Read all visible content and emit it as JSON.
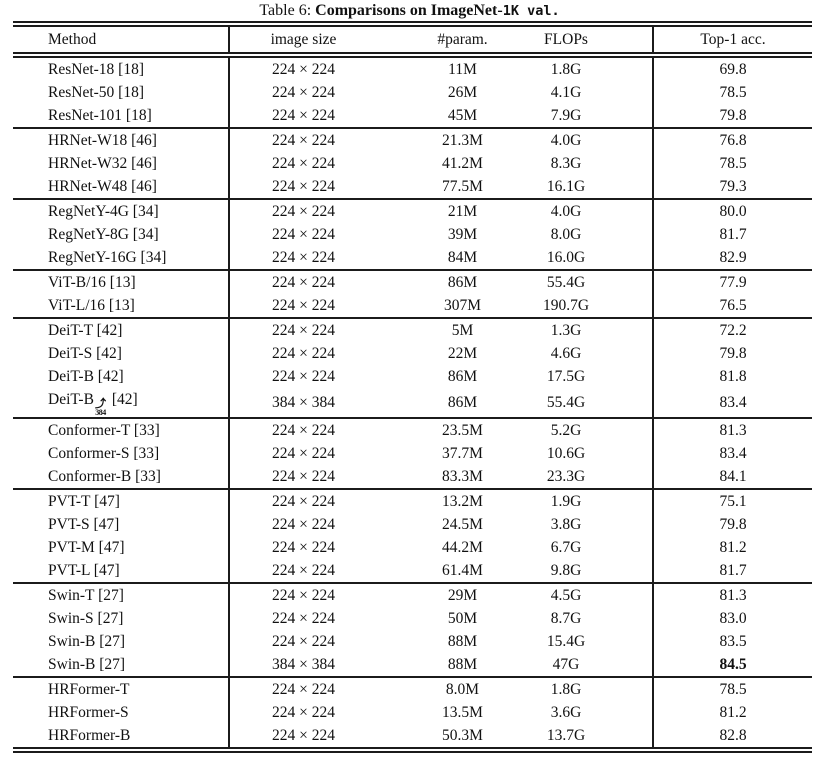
{
  "caption": {
    "label": "Table 6: ",
    "bold_text": "Comparisons on ImageNet-",
    "mono_text": "1K val."
  },
  "table": {
    "columns": [
      "Method",
      "image size",
      "#param.",
      "FLOPs",
      "Top-1 acc."
    ],
    "groups": [
      {
        "name": "resnet",
        "rows": [
          {
            "method": "ResNet-18 [18]",
            "values": [
              "224 × 224",
              "11M",
              "1.8G",
              "69.8"
            ]
          },
          {
            "method": "ResNet-50 [18]",
            "values": [
              "224 × 224",
              "26M",
              "4.1G",
              "78.5"
            ]
          },
          {
            "method": "ResNet-101 [18]",
            "values": [
              "224 × 224",
              "45M",
              "7.9G",
              "79.8"
            ]
          }
        ]
      },
      {
        "name": "hrnet",
        "rows": [
          {
            "method": "HRNet-W18 [46]",
            "values": [
              "224 × 224",
              "21.3M",
              "4.0G",
              "76.8"
            ]
          },
          {
            "method": "HRNet-W32 [46]",
            "values": [
              "224 × 224",
              "41.2M",
              "8.3G",
              "78.5"
            ]
          },
          {
            "method": "HRNet-W48 [46]",
            "values": [
              "224 × 224",
              "77.5M",
              "16.1G",
              "79.3"
            ]
          }
        ]
      },
      {
        "name": "regnety",
        "rows": [
          {
            "method": "RegNetY-4G [34]",
            "values": [
              "224 × 224",
              "21M",
              "4.0G",
              "80.0"
            ]
          },
          {
            "method": "RegNetY-8G [34]",
            "values": [
              "224 × 224",
              "39M",
              "8.0G",
              "81.7"
            ]
          },
          {
            "method": "RegNetY-16G [34]",
            "values": [
              "224 × 224",
              "84M",
              "16.0G",
              "82.9"
            ]
          }
        ]
      },
      {
        "name": "vit",
        "rows": [
          {
            "method": "ViT-B/16 [13]",
            "values": [
              "224 × 224",
              "86M",
              "55.4G",
              "77.9"
            ]
          },
          {
            "method": "ViT-L/16 [13]",
            "values": [
              "224 × 224",
              "307M",
              "190.7G",
              "76.5"
            ]
          }
        ]
      },
      {
        "name": "deit",
        "rows": [
          {
            "method": "DeiT-T [42]",
            "values": [
              "224 × 224",
              "5M",
              "1.3G",
              "72.2"
            ]
          },
          {
            "method": "DeiT-S [42]",
            "values": [
              "224 × 224",
              "22M",
              "4.6G",
              "79.8"
            ]
          },
          {
            "method": "DeiT-B [42]",
            "values": [
              "224 × 224",
              "86M",
              "17.5G",
              "81.8"
            ]
          },
          {
            "method": "DeiT-B",
            "mark": {
              "arrow": "⤴",
              "num": "384"
            },
            "method_post": " [42]",
            "values": [
              "384 × 384",
              "86M",
              "55.4G",
              "83.4"
            ]
          }
        ]
      },
      {
        "name": "conformer",
        "rows": [
          {
            "method": "Conformer-T [33]",
            "values": [
              "224 × 224",
              "23.5M",
              "5.2G",
              "81.3"
            ]
          },
          {
            "method": "Conformer-S [33]",
            "values": [
              "224 × 224",
              "37.7M",
              "10.6G",
              "83.4"
            ]
          },
          {
            "method": "Conformer-B [33]",
            "values": [
              "224 × 224",
              "83.3M",
              "23.3G",
              "84.1"
            ]
          }
        ]
      },
      {
        "name": "pvt",
        "rows": [
          {
            "method": "PVT-T [47]",
            "values": [
              "224 × 224",
              "13.2M",
              "1.9G",
              "75.1"
            ]
          },
          {
            "method": "PVT-S [47]",
            "values": [
              "224 × 224",
              "24.5M",
              "3.8G",
              "79.8"
            ]
          },
          {
            "method": "PVT-M [47]",
            "values": [
              "224 × 224",
              "44.2M",
              "6.7G",
              "81.2"
            ]
          },
          {
            "method": "PVT-L [47]",
            "values": [
              "224 × 224",
              "61.4M",
              "9.8G",
              "81.7"
            ]
          }
        ]
      },
      {
        "name": "swin",
        "rows": [
          {
            "method": "Swin-T [27]",
            "values": [
              "224 × 224",
              "29M",
              "4.5G",
              "81.3"
            ]
          },
          {
            "method": "Swin-S [27]",
            "values": [
              "224 × 224",
              "50M",
              "8.7G",
              "83.0"
            ]
          },
          {
            "method": "Swin-B [27]",
            "values": [
              "224 × 224",
              "88M",
              "15.4G",
              "83.5"
            ]
          },
          {
            "method": "Swin-B [27]",
            "values": [
              "384 × 384",
              "88M",
              "47G",
              "84.5"
            ],
            "bold_last": true
          }
        ]
      },
      {
        "name": "hrformer",
        "rows": [
          {
            "method": "HRFormer-T",
            "values": [
              "224 × 224",
              "8.0M",
              "1.8G",
              "78.5"
            ]
          },
          {
            "method": "HRFormer-S",
            "values": [
              "224 × 224",
              "13.5M",
              "3.6G",
              "81.2"
            ]
          },
          {
            "method": "HRFormer-B",
            "values": [
              "224 × 224",
              "50.3M",
              "13.7G",
              "82.8"
            ]
          }
        ]
      }
    ]
  }
}
